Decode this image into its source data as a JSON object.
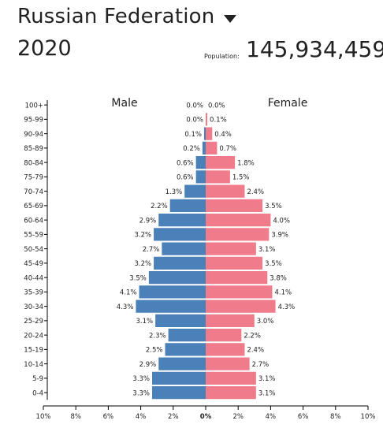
{
  "header": {
    "country": "Russian Federation",
    "year": "2020",
    "population_label": "Population:",
    "population_value": "145,934,459"
  },
  "colors": {
    "male": "#4a81b8",
    "female": "#f07b8a",
    "axis": "#000000"
  },
  "chart_data": {
    "type": "bar",
    "orientation": "horizontal",
    "series_labels": {
      "male": "Male",
      "female": "Female"
    },
    "categories": [
      "100+",
      "95-99",
      "90-94",
      "85-89",
      "80-84",
      "75-79",
      "70-74",
      "65-69",
      "60-64",
      "55-59",
      "50-54",
      "45-49",
      "40-44",
      "35-39",
      "30-34",
      "25-29",
      "20-24",
      "15-19",
      "10-14",
      "5-9",
      "0-4"
    ],
    "series": [
      {
        "name": "Male",
        "values": [
          0.0,
          0.0,
          0.1,
          0.2,
          0.6,
          0.6,
          1.3,
          2.2,
          2.9,
          3.2,
          2.7,
          3.2,
          3.5,
          4.1,
          4.3,
          3.1,
          2.3,
          2.5,
          2.9,
          3.3,
          3.3
        ]
      },
      {
        "name": "Female",
        "values": [
          0.0,
          0.1,
          0.4,
          0.7,
          1.8,
          1.5,
          2.4,
          3.5,
          4.0,
          3.9,
          3.1,
          3.5,
          3.8,
          4.1,
          4.3,
          3.0,
          2.2,
          2.4,
          2.7,
          3.1,
          3.1
        ]
      }
    ],
    "value_suffix": "%",
    "x_ticks": [
      "10%",
      "8%",
      "6%",
      "4%",
      "2%",
      "0%",
      "2%",
      "4%",
      "6%",
      "8%",
      "10%"
    ],
    "xlim": [
      -10,
      10
    ],
    "grid": false
  }
}
